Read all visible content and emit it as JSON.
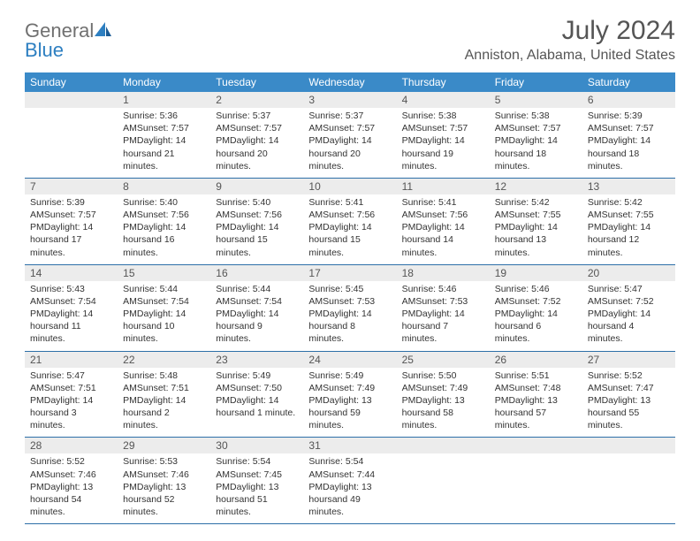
{
  "brand": {
    "part1": "General",
    "part2": "Blue"
  },
  "title": "July 2024",
  "location": "Anniston, Alabama, United States",
  "colors": {
    "header_bg": "#3a8ac8",
    "header_text": "#ffffff",
    "daynum_bg": "#ececec",
    "border": "#2d6fa8",
    "body_text": "#333333",
    "title_text": "#555555"
  },
  "days_of_week": [
    "Sunday",
    "Monday",
    "Tuesday",
    "Wednesday",
    "Thursday",
    "Friday",
    "Saturday"
  ],
  "weeks": [
    [
      null,
      {
        "n": "1",
        "sr": "Sunrise: 5:36 AM",
        "ss": "Sunset: 7:57 PM",
        "d1": "Daylight: 14 hours",
        "d2": "and 21 minutes."
      },
      {
        "n": "2",
        "sr": "Sunrise: 5:37 AM",
        "ss": "Sunset: 7:57 PM",
        "d1": "Daylight: 14 hours",
        "d2": "and 20 minutes."
      },
      {
        "n": "3",
        "sr": "Sunrise: 5:37 AM",
        "ss": "Sunset: 7:57 PM",
        "d1": "Daylight: 14 hours",
        "d2": "and 20 minutes."
      },
      {
        "n": "4",
        "sr": "Sunrise: 5:38 AM",
        "ss": "Sunset: 7:57 PM",
        "d1": "Daylight: 14 hours",
        "d2": "and 19 minutes."
      },
      {
        "n": "5",
        "sr": "Sunrise: 5:38 AM",
        "ss": "Sunset: 7:57 PM",
        "d1": "Daylight: 14 hours",
        "d2": "and 18 minutes."
      },
      {
        "n": "6",
        "sr": "Sunrise: 5:39 AM",
        "ss": "Sunset: 7:57 PM",
        "d1": "Daylight: 14 hours",
        "d2": "and 18 minutes."
      }
    ],
    [
      {
        "n": "7",
        "sr": "Sunrise: 5:39 AM",
        "ss": "Sunset: 7:57 PM",
        "d1": "Daylight: 14 hours",
        "d2": "and 17 minutes."
      },
      {
        "n": "8",
        "sr": "Sunrise: 5:40 AM",
        "ss": "Sunset: 7:56 PM",
        "d1": "Daylight: 14 hours",
        "d2": "and 16 minutes."
      },
      {
        "n": "9",
        "sr": "Sunrise: 5:40 AM",
        "ss": "Sunset: 7:56 PM",
        "d1": "Daylight: 14 hours",
        "d2": "and 15 minutes."
      },
      {
        "n": "10",
        "sr": "Sunrise: 5:41 AM",
        "ss": "Sunset: 7:56 PM",
        "d1": "Daylight: 14 hours",
        "d2": "and 15 minutes."
      },
      {
        "n": "11",
        "sr": "Sunrise: 5:41 AM",
        "ss": "Sunset: 7:56 PM",
        "d1": "Daylight: 14 hours",
        "d2": "and 14 minutes."
      },
      {
        "n": "12",
        "sr": "Sunrise: 5:42 AM",
        "ss": "Sunset: 7:55 PM",
        "d1": "Daylight: 14 hours",
        "d2": "and 13 minutes."
      },
      {
        "n": "13",
        "sr": "Sunrise: 5:42 AM",
        "ss": "Sunset: 7:55 PM",
        "d1": "Daylight: 14 hours",
        "d2": "and 12 minutes."
      }
    ],
    [
      {
        "n": "14",
        "sr": "Sunrise: 5:43 AM",
        "ss": "Sunset: 7:54 PM",
        "d1": "Daylight: 14 hours",
        "d2": "and 11 minutes."
      },
      {
        "n": "15",
        "sr": "Sunrise: 5:44 AM",
        "ss": "Sunset: 7:54 PM",
        "d1": "Daylight: 14 hours",
        "d2": "and 10 minutes."
      },
      {
        "n": "16",
        "sr": "Sunrise: 5:44 AM",
        "ss": "Sunset: 7:54 PM",
        "d1": "Daylight: 14 hours",
        "d2": "and 9 minutes."
      },
      {
        "n": "17",
        "sr": "Sunrise: 5:45 AM",
        "ss": "Sunset: 7:53 PM",
        "d1": "Daylight: 14 hours",
        "d2": "and 8 minutes."
      },
      {
        "n": "18",
        "sr": "Sunrise: 5:46 AM",
        "ss": "Sunset: 7:53 PM",
        "d1": "Daylight: 14 hours",
        "d2": "and 7 minutes."
      },
      {
        "n": "19",
        "sr": "Sunrise: 5:46 AM",
        "ss": "Sunset: 7:52 PM",
        "d1": "Daylight: 14 hours",
        "d2": "and 6 minutes."
      },
      {
        "n": "20",
        "sr": "Sunrise: 5:47 AM",
        "ss": "Sunset: 7:52 PM",
        "d1": "Daylight: 14 hours",
        "d2": "and 4 minutes."
      }
    ],
    [
      {
        "n": "21",
        "sr": "Sunrise: 5:47 AM",
        "ss": "Sunset: 7:51 PM",
        "d1": "Daylight: 14 hours",
        "d2": "and 3 minutes."
      },
      {
        "n": "22",
        "sr": "Sunrise: 5:48 AM",
        "ss": "Sunset: 7:51 PM",
        "d1": "Daylight: 14 hours",
        "d2": "and 2 minutes."
      },
      {
        "n": "23",
        "sr": "Sunrise: 5:49 AM",
        "ss": "Sunset: 7:50 PM",
        "d1": "Daylight: 14 hours",
        "d2": "and 1 minute."
      },
      {
        "n": "24",
        "sr": "Sunrise: 5:49 AM",
        "ss": "Sunset: 7:49 PM",
        "d1": "Daylight: 13 hours",
        "d2": "and 59 minutes."
      },
      {
        "n": "25",
        "sr": "Sunrise: 5:50 AM",
        "ss": "Sunset: 7:49 PM",
        "d1": "Daylight: 13 hours",
        "d2": "and 58 minutes."
      },
      {
        "n": "26",
        "sr": "Sunrise: 5:51 AM",
        "ss": "Sunset: 7:48 PM",
        "d1": "Daylight: 13 hours",
        "d2": "and 57 minutes."
      },
      {
        "n": "27",
        "sr": "Sunrise: 5:52 AM",
        "ss": "Sunset: 7:47 PM",
        "d1": "Daylight: 13 hours",
        "d2": "and 55 minutes."
      }
    ],
    [
      {
        "n": "28",
        "sr": "Sunrise: 5:52 AM",
        "ss": "Sunset: 7:46 PM",
        "d1": "Daylight: 13 hours",
        "d2": "and 54 minutes."
      },
      {
        "n": "29",
        "sr": "Sunrise: 5:53 AM",
        "ss": "Sunset: 7:46 PM",
        "d1": "Daylight: 13 hours",
        "d2": "and 52 minutes."
      },
      {
        "n": "30",
        "sr": "Sunrise: 5:54 AM",
        "ss": "Sunset: 7:45 PM",
        "d1": "Daylight: 13 hours",
        "d2": "and 51 minutes."
      },
      {
        "n": "31",
        "sr": "Sunrise: 5:54 AM",
        "ss": "Sunset: 7:44 PM",
        "d1": "Daylight: 13 hours",
        "d2": "and 49 minutes."
      },
      null,
      null,
      null
    ]
  ]
}
